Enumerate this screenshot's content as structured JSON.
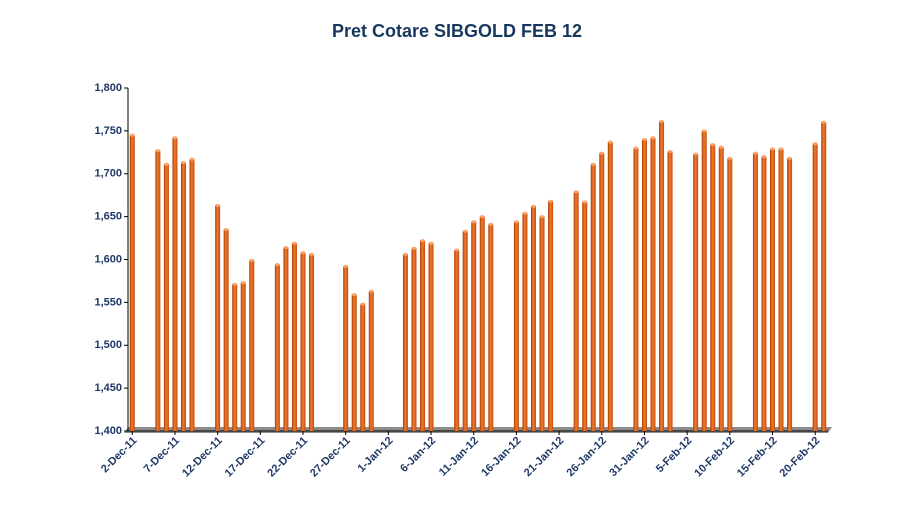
{
  "chart_data": {
    "type": "bar",
    "title": "Pret Cotare SIBGOLD FEB 12",
    "categories": [
      "2-Dec-11",
      null,
      null,
      null,
      null,
      "7-Dec-11",
      null,
      null,
      null,
      null,
      "12-Dec-11",
      null,
      null,
      null,
      null,
      "17-Dec-11",
      null,
      null,
      null,
      null,
      "22-Dec-11",
      null,
      null,
      null,
      null,
      "27-Dec-11",
      null,
      null,
      null,
      null,
      "1-Jan-12",
      null,
      null,
      null,
      null,
      "6-Jan-12",
      null,
      null,
      null,
      null,
      "11-Jan-12",
      null,
      null,
      null,
      null,
      "16-Jan-12",
      null,
      null,
      null,
      null,
      "21-Jan-12",
      null,
      null,
      null,
      null,
      "26-Jan-12",
      null,
      null,
      null,
      null,
      "31-Jan-12",
      null,
      null,
      null,
      null,
      "5-Feb-12",
      null,
      null,
      null,
      null,
      "10-Feb-12",
      null,
      null,
      null,
      null,
      "15-Feb-12",
      null,
      null,
      null,
      null,
      "20-Feb-12",
      null
    ],
    "values": [
      1745,
      null,
      null,
      1727,
      1711,
      1742,
      1713,
      1717,
      null,
      null,
      1663,
      1635,
      1571,
      1573,
      1599,
      null,
      null,
      1594,
      1614,
      1619,
      1608,
      1606,
      null,
      null,
      null,
      1592,
      1559,
      1548,
      1563,
      null,
      null,
      null,
      1606,
      1613,
      1622,
      1619,
      null,
      null,
      1611,
      1633,
      1644,
      1650,
      1641,
      null,
      null,
      1644,
      1654,
      1662,
      1650,
      1668,
      null,
      null,
      1679,
      1667,
      1711,
      1724,
      1737,
      null,
      null,
      1730,
      1740,
      1742,
      1761,
      1726,
      null,
      null,
      1723,
      1750,
      1734,
      1731,
      1718,
      null,
      null,
      1724,
      1720,
      1729,
      1729,
      1718,
      null,
      null,
      1735,
      1760
    ],
    "color": "#e8661a",
    "ylim": [
      1400,
      1800
    ],
    "yticks": [
      {
        "value": 1400,
        "label": "1,400"
      },
      {
        "value": 1450,
        "label": "1,450"
      },
      {
        "value": 1500,
        "label": "1,500"
      },
      {
        "value": 1550,
        "label": "1,550"
      },
      {
        "value": 1600,
        "label": "1,600"
      },
      {
        "value": 1650,
        "label": "1,650"
      },
      {
        "value": 1700,
        "label": "1,700"
      },
      {
        "value": 1750,
        "label": "1,750"
      },
      {
        "value": 1800,
        "label": "1,800"
      }
    ],
    "grid": false
  }
}
